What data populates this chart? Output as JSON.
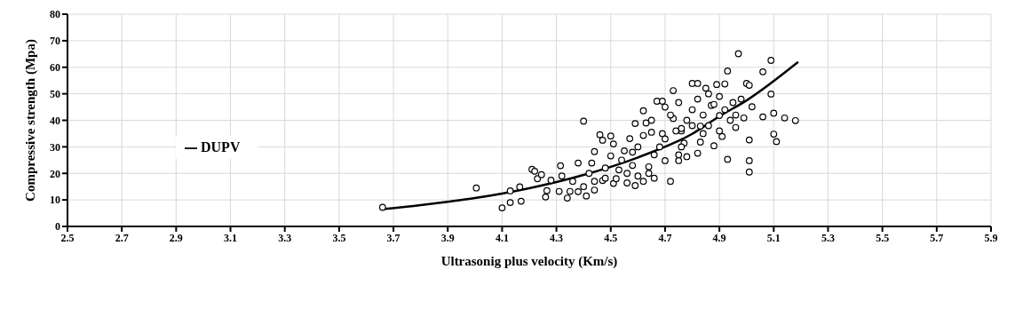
{
  "chart_data": {
    "type": "scatter",
    "xlabel": "Ultrasonig plus velocity (Km/s)",
    "ylabel": "Compressive strength (Mpa)",
    "xlim": [
      2.5,
      5.9
    ],
    "xticks": [
      2.5,
      2.7,
      2.9,
      3.1,
      3.3,
      3.5,
      3.7,
      3.9,
      4.1,
      4.3,
      4.5,
      4.7,
      4.9,
      5.1,
      5.3,
      5.5,
      5.7,
      5.9
    ],
    "ylim": [
      0,
      80
    ],
    "yticks": [
      0,
      10,
      20,
      30,
      40,
      50,
      60,
      70,
      80
    ],
    "grid": true,
    "legend": "left",
    "series": [
      {
        "color": "#000000",
        "marker": "circle",
        "x": [
          3.66,
          4.005,
          4.1,
          4.13,
          4.17,
          4.13,
          4.165,
          4.21,
          4.22,
          4.23,
          4.245,
          4.26,
          4.265,
          4.28,
          4.31,
          4.315,
          4.34,
          4.35,
          4.38,
          4.38,
          4.4,
          4.41,
          4.43,
          4.44,
          4.44,
          4.46,
          4.47,
          4.47,
          4.48,
          4.5,
          4.5,
          4.51,
          4.51,
          4.53,
          4.55,
          4.56,
          4.57,
          4.58,
          4.59,
          4.59,
          4.62,
          4.62,
          4.63,
          4.64,
          4.65,
          4.66,
          4.67,
          4.69,
          4.69,
          4.7,
          4.72,
          4.73,
          4.73,
          4.75,
          4.75,
          4.76,
          4.77,
          4.75,
          4.76,
          4.78,
          4.8,
          4.82,
          4.82,
          4.83,
          4.83,
          4.85,
          4.87,
          4.88,
          4.89,
          4.9,
          4.91,
          4.92,
          4.93,
          4.93,
          4.95,
          4.96,
          4.97,
          4.99,
          5.0,
          5.01,
          5.01,
          5.01,
          5.01,
          5.02,
          5.06,
          5.06,
          5.09,
          5.09,
          5.1,
          5.1,
          5.11,
          5.14,
          5.18,
          4.78,
          4.8,
          4.82,
          4.84,
          4.86,
          4.88,
          4.9,
          4.92,
          4.94,
          4.72,
          4.74,
          4.68,
          4.66,
          4.64,
          4.62,
          4.6,
          4.56,
          4.52,
          4.48,
          4.44,
          4.42,
          4.4,
          4.36,
          4.32,
          4.54,
          4.58,
          4.7,
          4.76,
          4.84,
          4.9,
          4.96,
          4.98,
          4.86,
          4.8,
          4.7,
          4.65,
          4.6
        ],
        "values": [
          7.2,
          14.5,
          7.0,
          9.0,
          9.5,
          13.4,
          14.9,
          21.5,
          20.8,
          18,
          19.5,
          11.1,
          13.5,
          17.4,
          13.2,
          22.9,
          10.7,
          13.2,
          23.9,
          13.1,
          39.7,
          11.5,
          23.9,
          28.2,
          13.7,
          34.6,
          32.5,
          17.3,
          18.2,
          26.6,
          34.1,
          31.1,
          16.2,
          21.3,
          28.5,
          16.4,
          33.1,
          23,
          38.8,
          15.4,
          34.3,
          43.6,
          39,
          22.5,
          35.5,
          18.2,
          47.2,
          47.2,
          35,
          24.8,
          17,
          51.2,
          40.7,
          46.7,
          27,
          36,
          31.4,
          24.8,
          36.9,
          26.3,
          53.9,
          53.9,
          27.6,
          31.8,
          37.8,
          52.1,
          45.6,
          30.4,
          53.5,
          41.8,
          33.9,
          53.7,
          58.6,
          25.3,
          46.7,
          37.3,
          65.1,
          40.9,
          53.9,
          53.2,
          32.6,
          24.8,
          20.5,
          45.1,
          58.3,
          41.3,
          62.6,
          49.9,
          34.8,
          42.7,
          32,
          40.9,
          39.9,
          40,
          44,
          48,
          42,
          38,
          46,
          49,
          44,
          40,
          42,
          36,
          30,
          27,
          20,
          17,
          19,
          20,
          18,
          22,
          17,
          20,
          15,
          17,
          19,
          25,
          28,
          33,
          30,
          35,
          36,
          42,
          48,
          50,
          38,
          45,
          40,
          30
        ]
      },
      {
        "type": "line",
        "name": "DUPV",
        "color": "#000000",
        "marker": "none",
        "line_style": "solid",
        "x": [
          3.66,
          3.8,
          3.9,
          4.0,
          4.1,
          4.2,
          4.4,
          4.6,
          4.8,
          4.9,
          5.0,
          5.19
        ],
        "values": [
          6.5,
          8.0,
          9.3,
          10.7,
          12.4,
          14.4,
          19.4,
          26.0,
          34.9,
          41.5,
          47.5,
          62
        ]
      }
    ]
  }
}
